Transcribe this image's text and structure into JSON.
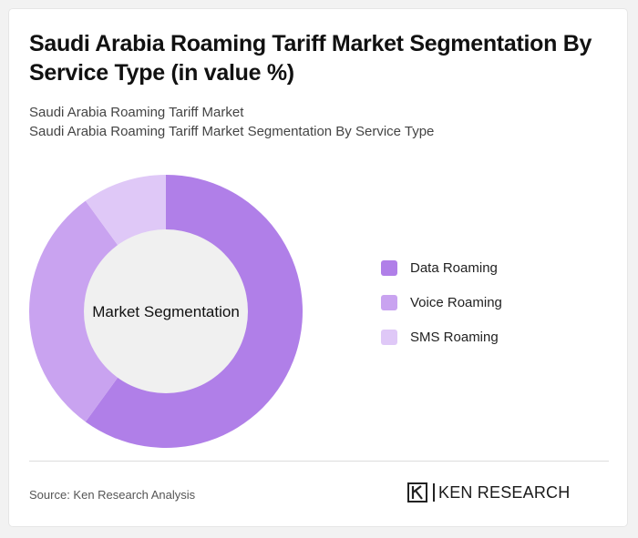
{
  "title": "Saudi Arabia Roaming Tariff Market Segmentation By Service Type (in value %)",
  "subtitle_1": "Saudi Arabia Roaming Tariff Market",
  "subtitle_2": "Saudi Arabia Roaming Tariff Market Segmentation By Service Type",
  "source": "Source: Ken Research Analysis",
  "brand": "KEN RESEARCH",
  "chart_data": {
    "type": "pie",
    "style": "donut",
    "center_label": "Market Segmentation",
    "categories": [
      "Data Roaming",
      "Voice Roaming",
      "SMS Roaming"
    ],
    "values": [
      60,
      30,
      10
    ],
    "colors": [
      "#b07fe8",
      "#c9a3f0",
      "#dfc8f7"
    ],
    "legend_position": "right"
  }
}
